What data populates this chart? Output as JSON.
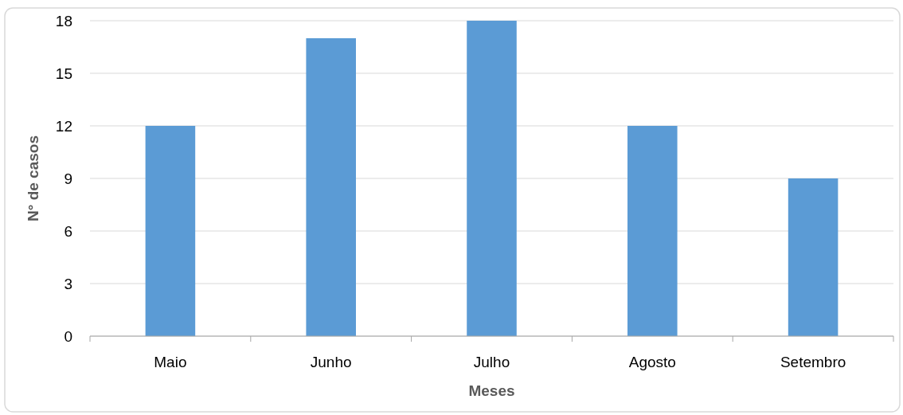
{
  "chart_data": {
    "type": "bar",
    "xlabel": "Meses",
    "ylabel": "N° de casos",
    "categories": [
      "Maio",
      "Junho",
      "Julho",
      "Agosto",
      "Setembro"
    ],
    "values": [
      12,
      17,
      18,
      12,
      9
    ],
    "color": "#5b9bd5",
    "ylim": [
      0,
      18
    ],
    "yticks": [
      0,
      3,
      6,
      9,
      12,
      15,
      18
    ],
    "grid": "y"
  }
}
